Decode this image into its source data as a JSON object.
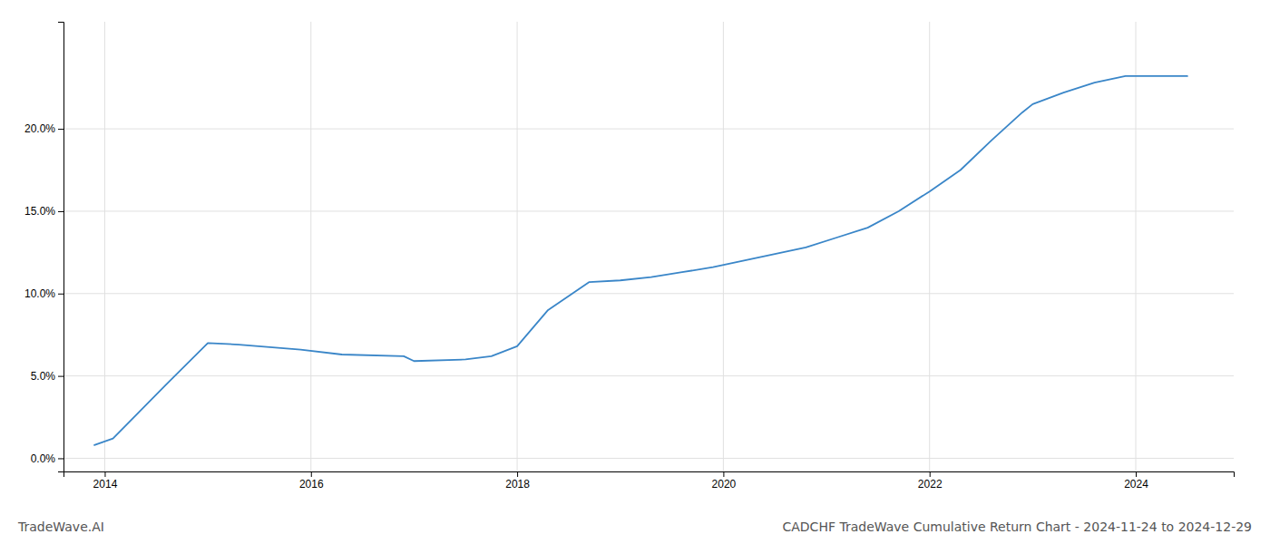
{
  "chart_data": {
    "type": "line",
    "title": "CADCHF TradeWave Cumulative Return Chart - 2024-11-24 to 2024-12-29",
    "annotations": [
      "TradeWave.AI"
    ],
    "x": [
      2013.9,
      2014.08,
      2014.6,
      2015.0,
      2015.3,
      2015.9,
      2016.3,
      2016.9,
      2017.0,
      2017.5,
      2017.75,
      2018.0,
      2018.3,
      2018.7,
      2019.0,
      2019.3,
      2019.6,
      2019.9,
      2020.2,
      2020.5,
      2020.8,
      2021.1,
      2021.4,
      2021.7,
      2022.0,
      2022.3,
      2022.6,
      2022.9,
      2023.0,
      2023.3,
      2023.6,
      2023.9,
      2024.0,
      2024.5
    ],
    "values": [
      0.008,
      0.012,
      0.045,
      0.07,
      0.069,
      0.066,
      0.063,
      0.062,
      0.059,
      0.06,
      0.062,
      0.068,
      0.09,
      0.107,
      0.108,
      0.11,
      0.113,
      0.116,
      0.12,
      0.124,
      0.128,
      0.134,
      0.14,
      0.15,
      0.162,
      0.175,
      0.193,
      0.21,
      0.215,
      0.222,
      0.228,
      0.232,
      0.232,
      0.232
    ],
    "color": "#3a86c8",
    "xlim": [
      2013.6,
      2024.95
    ],
    "ylim": [
      -0.008,
      0.265
    ],
    "xticks": [
      2014,
      2016,
      2018,
      2020,
      2022,
      2024
    ],
    "yticks": [
      {
        "value": 0.0,
        "label": "0.0%"
      },
      {
        "value": 0.05,
        "label": "5.0%"
      },
      {
        "value": 0.1,
        "label": "10.0%"
      },
      {
        "value": 0.15,
        "label": "15.0%"
      },
      {
        "value": 0.2,
        "label": "20.0%"
      }
    ],
    "grid": true
  }
}
